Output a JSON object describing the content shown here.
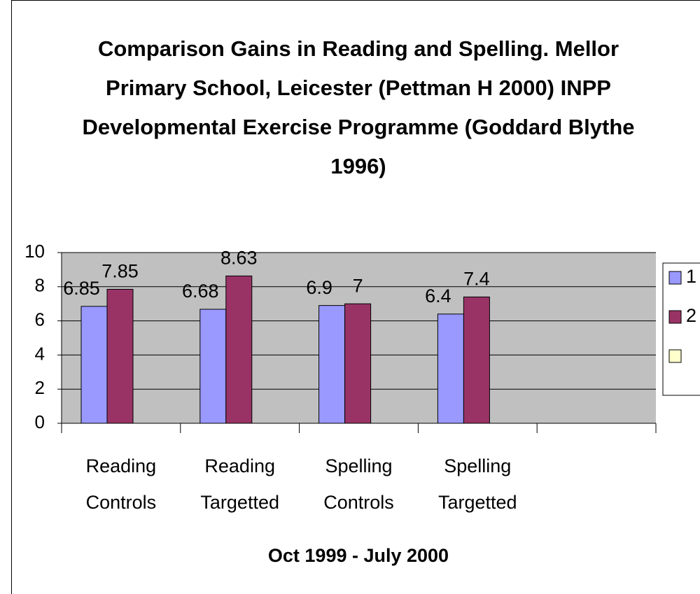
{
  "chart_data": {
    "type": "bar",
    "title": "Comparison Gains in Reading and Spelling. Mellor Primary School, Leicester (Pettman H 2000) INPP Developmental Exercise Programme (Goddard Blythe 1996)",
    "x_label": "Oct 1999 - July 2000",
    "categories": [
      "Reading Controls",
      "Reading Targetted",
      "Spelling Controls",
      "Spelling Targetted",
      null
    ],
    "series": [
      {
        "name": "1",
        "color": "#9999ff",
        "values": [
          6.85,
          6.68,
          6.9,
          6.4,
          null
        ]
      },
      {
        "name": "2",
        "color": "#993366",
        "values": [
          7.85,
          8.63,
          7,
          7.4,
          null
        ]
      },
      {
        "color": "#ffffcc",
        "values": [
          null,
          null,
          null,
          null,
          null
        ]
      }
    ],
    "ylim": [
      0,
      10
    ],
    "yticks": [
      0,
      2,
      4,
      6,
      8,
      10
    ],
    "grid": true,
    "legend": "right",
    "plot_background": "#c0c0c0"
  }
}
